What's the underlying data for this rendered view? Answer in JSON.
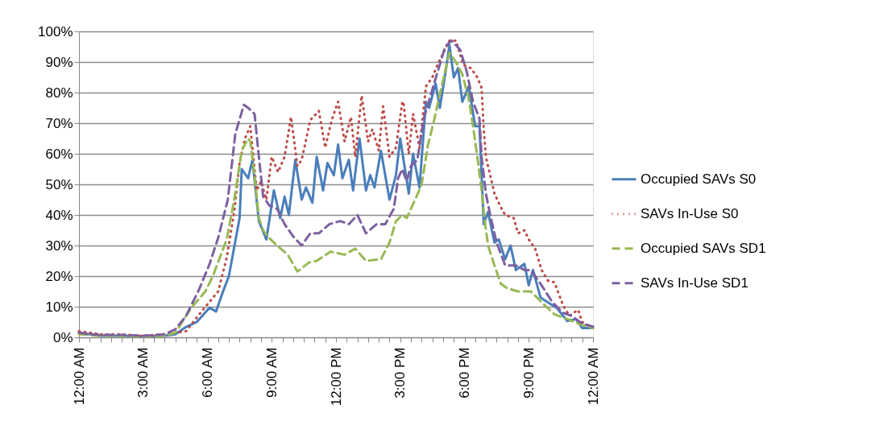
{
  "chart_data": {
    "type": "line",
    "xlim": [
      0,
      24
    ],
    "xticks": [
      {
        "value": 0,
        "label": "12:00 AM"
      },
      {
        "value": 0.5,
        "label": null
      },
      {
        "value": 1,
        "label": null
      },
      {
        "value": 1.5,
        "label": null
      },
      {
        "value": 2,
        "label": null
      },
      {
        "value": 2.5,
        "label": null
      },
      {
        "value": 3,
        "label": "3:00 AM"
      },
      {
        "value": 3.5,
        "label": null
      },
      {
        "value": 4,
        "label": null
      },
      {
        "value": 4.5,
        "label": null
      },
      {
        "value": 5,
        "label": null
      },
      {
        "value": 5.5,
        "label": null
      },
      {
        "value": 6,
        "label": "6:00 AM"
      },
      {
        "value": 6.5,
        "label": null
      },
      {
        "value": 7,
        "label": null
      },
      {
        "value": 7.5,
        "label": null
      },
      {
        "value": 8,
        "label": null
      },
      {
        "value": 8.5,
        "label": null
      },
      {
        "value": 9,
        "label": "9:00 AM"
      },
      {
        "value": 9.5,
        "label": null
      },
      {
        "value": 10,
        "label": null
      },
      {
        "value": 10.5,
        "label": null
      },
      {
        "value": 11,
        "label": null
      },
      {
        "value": 11.5,
        "label": null
      },
      {
        "value": 12,
        "label": "12:00 PM"
      },
      {
        "value": 12.5,
        "label": null
      },
      {
        "value": 13,
        "label": null
      },
      {
        "value": 13.5,
        "label": null
      },
      {
        "value": 14,
        "label": null
      },
      {
        "value": 14.5,
        "label": null
      },
      {
        "value": 15,
        "label": "3:00 PM"
      },
      {
        "value": 15.5,
        "label": null
      },
      {
        "value": 16,
        "label": null
      },
      {
        "value": 16.5,
        "label": null
      },
      {
        "value": 17,
        "label": null
      },
      {
        "value": 17.5,
        "label": null
      },
      {
        "value": 18,
        "label": "6:00 PM"
      },
      {
        "value": 18.5,
        "label": null
      },
      {
        "value": 19,
        "label": null
      },
      {
        "value": 19.5,
        "label": null
      },
      {
        "value": 20,
        "label": null
      },
      {
        "value": 20.5,
        "label": null
      },
      {
        "value": 21,
        "label": "9:00 PM"
      },
      {
        "value": 21.5,
        "label": null
      },
      {
        "value": 22,
        "label": null
      },
      {
        "value": 22.5,
        "label": null
      },
      {
        "value": 23,
        "label": null
      },
      {
        "value": 23.5,
        "label": null
      },
      {
        "value": 24,
        "label": "12:00 AM"
      }
    ],
    "ylim": [
      0,
      100
    ],
    "yticks": [
      {
        "value": 0,
        "label": "0%"
      },
      {
        "value": 10,
        "label": "10%"
      },
      {
        "value": 20,
        "label": "20%"
      },
      {
        "value": 30,
        "label": "30%"
      },
      {
        "value": 40,
        "label": "40%"
      },
      {
        "value": 50,
        "label": "50%"
      },
      {
        "value": 60,
        "label": "60%"
      },
      {
        "value": 70,
        "label": "70%"
      },
      {
        "value": 80,
        "label": "80%"
      },
      {
        "value": 90,
        "label": "90%"
      },
      {
        "value": 100,
        "label": "100%"
      }
    ],
    "grid": "y",
    "legend": "right",
    "marker": "none",
    "series": [
      {
        "name": "Occupied SAVs S0",
        "color": "#4a7ebb",
        "line_style": "solid",
        "x": [
          0,
          0.5,
          1,
          2,
          3,
          4,
          4.5,
          5.0,
          5.5,
          6.1,
          6.4,
          6.7,
          7.0,
          7.5,
          7.6,
          7.9,
          8.1,
          8.4,
          8.75,
          9.1,
          9.4,
          9.6,
          9.8,
          10.1,
          10.4,
          10.6,
          10.9,
          11.1,
          11.4,
          11.6,
          11.9,
          12.1,
          12.3,
          12.6,
          12.8,
          13.1,
          13.4,
          13.6,
          13.8,
          14.1,
          14.5,
          14.8,
          15.0,
          15.4,
          15.6,
          15.9,
          16.2,
          16.35,
          16.65,
          16.85,
          17.1,
          17.3,
          17.5,
          17.7,
          17.9,
          18.2,
          18.5,
          18.7,
          18.9,
          19.1,
          19.4,
          19.6,
          19.9,
          20.15,
          20.4,
          20.8,
          21.0,
          21.2,
          21.55,
          21.9,
          22.3,
          22.8,
          23.2,
          23.5,
          24
        ],
        "values": [
          1.5,
          1,
          0.5,
          0.5,
          0.3,
          0.5,
          1,
          3.4,
          5,
          9.7,
          8.4,
          14.5,
          20,
          39,
          55,
          52,
          58,
          38,
          32,
          48,
          39,
          46,
          40,
          58,
          45,
          49,
          44,
          59,
          48,
          57,
          53,
          63,
          52,
          58,
          48,
          65,
          48,
          53,
          49,
          61,
          45,
          53,
          65,
          47,
          60,
          49,
          77,
          75,
          83,
          75,
          86,
          95.5,
          85,
          88,
          77,
          82,
          69,
          69,
          37,
          41,
          31,
          32,
          25.5,
          30,
          22,
          24,
          17,
          22,
          13,
          11.4,
          9.7,
          5.3,
          6,
          3,
          3
        ]
      },
      {
        "name": "SAVs In-Use S0",
        "color": "#be4b48",
        "line_style": "dotted",
        "x": [
          0,
          0.5,
          1,
          2,
          3,
          4,
          5,
          5.75,
          6.5,
          6.9,
          7.25,
          7.5,
          7.75,
          8.0,
          8.3,
          8.5,
          8.75,
          9.0,
          9.3,
          9.6,
          9.9,
          10.2,
          10.4,
          10.8,
          11.2,
          11.5,
          11.8,
          12.1,
          12.4,
          12.7,
          12.9,
          13.2,
          13.5,
          13.7,
          14.0,
          14.2,
          14.5,
          14.8,
          15.1,
          15.15,
          15.4,
          15.6,
          15.9,
          16.2,
          16.5,
          16.8,
          17.3,
          17.6,
          17.95,
          18.3,
          18.6,
          18.8,
          18.9,
          19.0,
          19.2,
          19.4,
          19.7,
          19.9,
          20.3,
          20.5,
          20.8,
          21.0,
          21.3,
          21.6,
          21.9,
          22.2,
          22.6,
          22.9,
          23.3,
          23.5,
          24
        ],
        "values": [
          2,
          1.5,
          1,
          1,
          0.5,
          1,
          2,
          8.7,
          15,
          26,
          41,
          57,
          65,
          69,
          48,
          51,
          45,
          59,
          54,
          59,
          72,
          56,
          58,
          71,
          74,
          62,
          71,
          77,
          64,
          72,
          59,
          79,
          64,
          68,
          61,
          75.5,
          59,
          62,
          77,
          77,
          60,
          73,
          62,
          82,
          85,
          90,
          97,
          97,
          89,
          88,
          85,
          81.5,
          68,
          59,
          53,
          47,
          42.5,
          40,
          39,
          34,
          35,
          32,
          29,
          22,
          18.5,
          18,
          10.5,
          7,
          9,
          5,
          3
        ]
      },
      {
        "name": "Occupied SAVs SD1",
        "color": "#98b954",
        "line_style": "dashed",
        "x": [
          0,
          0.5,
          1,
          2,
          3,
          4,
          4.5,
          5.25,
          5.9,
          6.25,
          6.9,
          7.25,
          7.6,
          7.9,
          8.0,
          8.2,
          8.4,
          8.6,
          8.8,
          9.25,
          9.75,
          10.2,
          10.75,
          11.1,
          11.75,
          12.4,
          12.9,
          13.4,
          14.1,
          14.5,
          14.8,
          15.1,
          15.3,
          15.7,
          16.0,
          16.3,
          16.6,
          16.8,
          17.1,
          17.3,
          17.6,
          17.9,
          18.2,
          18.4,
          18.6,
          18.8,
          18.95,
          19.1,
          19.4,
          19.7,
          20.0,
          20.5,
          21.1,
          21.6,
          22.2,
          22.8,
          23.5,
          24
        ],
        "values": [
          1,
          0.8,
          0.5,
          0.5,
          0.3,
          0.5,
          1.5,
          9.7,
          15,
          20,
          32,
          45,
          61,
          65,
          64,
          53,
          39,
          35,
          33,
          30,
          27,
          21.5,
          24.5,
          25,
          28,
          27,
          29,
          25,
          25.5,
          31,
          38,
          40,
          39,
          45,
          50,
          63,
          71.5,
          78,
          87,
          93,
          90,
          86,
          78,
          69,
          59,
          48,
          38,
          30,
          23.5,
          17.5,
          16,
          15,
          15,
          11.5,
          7.5,
          6,
          4,
          3
        ]
      },
      {
        "name": "SAVs In-Use SD1",
        "color": "#7d60a0",
        "line_style": "dashed",
        "x": [
          0,
          0.5,
          1,
          2,
          3,
          4,
          4.5,
          5.0,
          5.6,
          6.1,
          6.5,
          6.95,
          7.3,
          7.7,
          7.9,
          8.2,
          8.4,
          8.6,
          8.9,
          9.25,
          9.6,
          10.0,
          10.4,
          10.8,
          11.2,
          11.7,
          12.2,
          12.6,
          13.0,
          13.4,
          13.9,
          14.3,
          14.7,
          14.9,
          15.1,
          15.3,
          15.5,
          15.8,
          16.1,
          16.5,
          16.8,
          17.1,
          17.4,
          17.8,
          18.1,
          18.4,
          18.7,
          18.8,
          19.0,
          19.2,
          19.5,
          19.9,
          20.4,
          20.8,
          21.1,
          21.6,
          22.1,
          22.6,
          23.0,
          23.5,
          24
        ],
        "values": [
          1.5,
          1,
          0.8,
          0.8,
          0.5,
          1,
          2.6,
          7,
          15.5,
          24,
          32.5,
          45,
          66.5,
          76,
          75,
          73,
          59,
          46,
          43,
          42,
          37,
          33,
          30,
          34,
          34,
          37,
          38,
          37,
          40,
          34,
          37,
          37,
          42,
          52,
          55,
          51,
          56,
          58,
          71.5,
          81,
          88,
          95,
          97,
          94,
          87,
          77,
          71.5,
          59,
          47,
          40,
          31,
          23.5,
          23.5,
          22,
          22,
          17,
          11.5,
          8,
          7,
          4.5,
          3.5
        ]
      }
    ]
  }
}
